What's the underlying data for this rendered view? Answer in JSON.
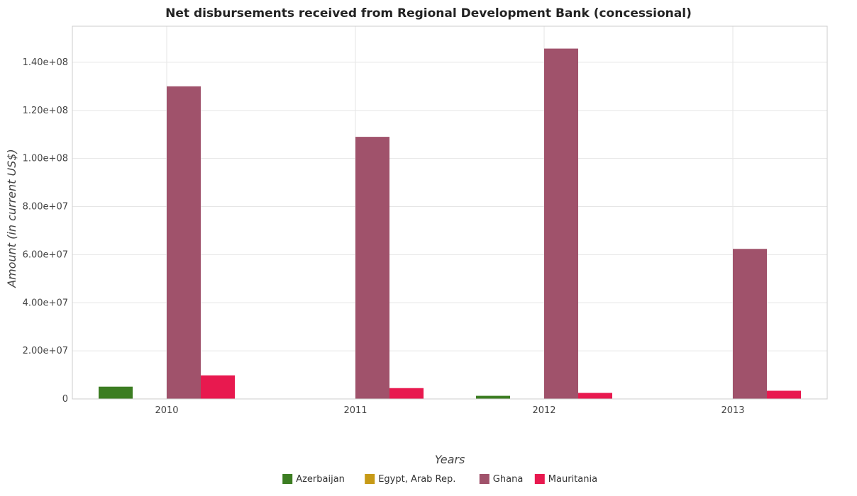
{
  "chart_data": {
    "type": "bar",
    "title": "Net disbursements received from Regional Development Bank (concessional)",
    "xlabel": "Years",
    "ylabel": "Amount (in current US$)",
    "categories": [
      "2010",
      "2011",
      "2012",
      "2013"
    ],
    "ylim": [
      0,
      155000000
    ],
    "yticks": [
      0,
      20000000,
      40000000,
      60000000,
      80000000,
      100000000,
      120000000,
      140000000
    ],
    "ytick_labels": [
      "0",
      "2.00e+07",
      "4.00e+07",
      "6.00e+07",
      "8.00e+07",
      "1.00e+08",
      "1.20e+08",
      "1.40e+08"
    ],
    "grid": true,
    "legend_position": "bottom-center",
    "series": [
      {
        "name": "Azerbaijan",
        "color": "#3c7d22",
        "values": [
          5100000,
          0,
          1300000,
          0
        ]
      },
      {
        "name": "Egypt, Arab Rep.",
        "color": "#c79a16",
        "values": [
          150000,
          0,
          0,
          0
        ]
      },
      {
        "name": "Ghana",
        "color": "#a0526b",
        "values": [
          130000000,
          109000000,
          145700000,
          62400000
        ]
      },
      {
        "name": "Mauritania",
        "color": "#e8194f",
        "values": [
          9800000,
          4500000,
          2500000,
          3400000
        ]
      }
    ]
  }
}
